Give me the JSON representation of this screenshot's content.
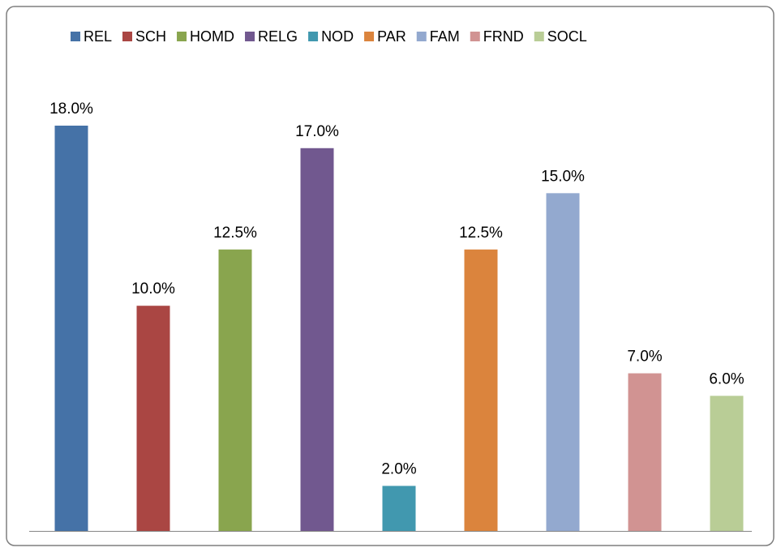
{
  "chart_data": {
    "type": "bar",
    "series": [
      {
        "name": "REL",
        "color": "#4572a7",
        "values": [
          18
        ],
        "value_labels": [
          "18.0%"
        ]
      },
      {
        "name": "SCH",
        "color": "#aa4643",
        "values": [
          10
        ],
        "value_labels": [
          "10.0%"
        ]
      },
      {
        "name": "HOMD",
        "color": "#89a54e",
        "values": [
          12.5
        ],
        "value_labels": [
          "12.5%"
        ]
      },
      {
        "name": "RELG",
        "color": "#71588f",
        "values": [
          17
        ],
        "value_labels": [
          "17.0%"
        ]
      },
      {
        "name": "NOD",
        "color": "#4198af",
        "values": [
          2
        ],
        "value_labels": [
          "2.0%"
        ]
      },
      {
        "name": "PAR",
        "color": "#db843d",
        "values": [
          12.5
        ],
        "value_labels": [
          "12.5%"
        ]
      },
      {
        "name": "FAM",
        "color": "#93a9cf",
        "values": [
          15
        ],
        "value_labels": [
          "15.0%"
        ]
      },
      {
        "name": "FRND",
        "color": "#d19392",
        "values": [
          7
        ],
        "value_labels": [
          "7.0%"
        ]
      },
      {
        "name": "SOCL",
        "color": "#b9cd96",
        "values": [
          6
        ],
        "value_labels": [
          "6.0%"
        ]
      }
    ],
    "legend": "top"
  }
}
